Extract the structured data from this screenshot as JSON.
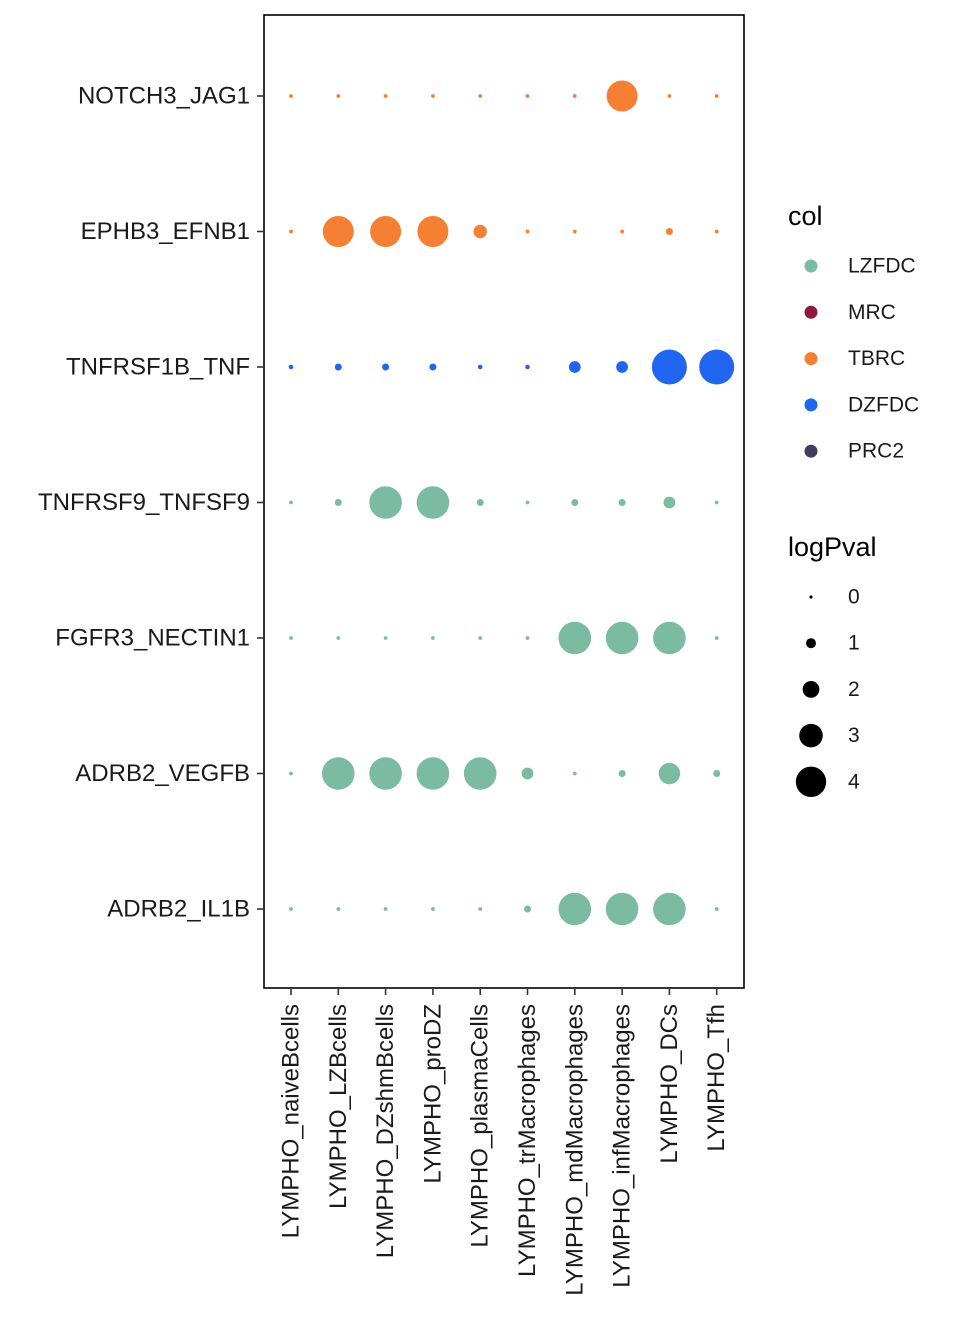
{
  "chart_data": {
    "type": "scatter",
    "x_categories": [
      "LYMPHO_naiveBcells",
      "LYMPHO_LZBcells",
      "LYMPHO_DZshmBcells",
      "LYMPHO_proDZ",
      "LYMPHO_plasmaCells",
      "LYMPHO_trMacrophages",
      "LYMPHO_mdMacrophages",
      "LYMPHO_infMacrophages",
      "LYMPHO_DCs",
      "LYMPHO_Tfh"
    ],
    "y_categories": [
      "NOTCH3_JAG1",
      "EPHB3_EFNB1",
      "TNFRSF1B_TNF",
      "TNFRSF9_TNFSF9",
      "FGFR3_NECTIN1",
      "ADRB2_VEGFB",
      "ADRB2_IL1B"
    ],
    "rows": [
      {
        "pair": "NOTCH3_JAG1",
        "col": "TBRC",
        "logPval": [
          0.1,
          0.1,
          0.1,
          0.1,
          0.1,
          0.1,
          0.1,
          3.5,
          0.1,
          0.1
        ]
      },
      {
        "pair": "EPHB3_EFNB1",
        "col": "TBRC",
        "logPval": [
          0.1,
          3.5,
          3.5,
          3.5,
          1.3,
          0.1,
          0.1,
          0.1,
          0.5,
          0.1
        ]
      },
      {
        "pair": "TNFRSF1B_TNF",
        "col": "DZFDC",
        "logPval": [
          0.2,
          0.5,
          0.5,
          0.5,
          0.2,
          0.2,
          1.1,
          1.1,
          4.0,
          4.0
        ]
      },
      {
        "pair": "TNFRSF9_TNFSF9",
        "col": "LZFDC",
        "logPval": [
          0.1,
          0.5,
          3.7,
          3.7,
          0.5,
          0.1,
          0.5,
          0.5,
          1.1,
          0.1
        ]
      },
      {
        "pair": "FGFR3_NECTIN1",
        "col": "LZFDC",
        "logPval": [
          0.1,
          0.1,
          0.1,
          0.1,
          0.1,
          0.1,
          3.7,
          3.7,
          3.7,
          0.1
        ]
      },
      {
        "pair": "ADRB2_VEGFB",
        "col": "LZFDC",
        "logPval": [
          0.1,
          3.7,
          3.7,
          3.7,
          3.7,
          1.1,
          0.1,
          0.5,
          2.3,
          0.5
        ]
      },
      {
        "pair": "ADRB2_IL1B",
        "col": "LZFDC",
        "logPval": [
          0.1,
          0.1,
          0.1,
          0.1,
          0.1,
          0.5,
          3.7,
          3.7,
          3.7,
          0.1
        ]
      }
    ],
    "legend_col": {
      "title": "col",
      "entries": [
        {
          "name": "LZFDC",
          "color": "#7bbba2"
        },
        {
          "name": "MRC",
          "color": "#8b1a3a"
        },
        {
          "name": "TBRC",
          "color": "#f57f33"
        },
        {
          "name": "DZFDC",
          "color": "#2166f0"
        },
        {
          "name": "PRC2",
          "color": "#403d5c"
        }
      ]
    },
    "legend_size": {
      "title": "logPval",
      "entries": [
        {
          "label": "0",
          "value": 0
        },
        {
          "label": "1",
          "value": 1
        },
        {
          "label": "2",
          "value": 2
        },
        {
          "label": "3",
          "value": 3
        },
        {
          "label": "4",
          "value": 4
        }
      ]
    },
    "legend_placement": "right",
    "grid": false
  }
}
